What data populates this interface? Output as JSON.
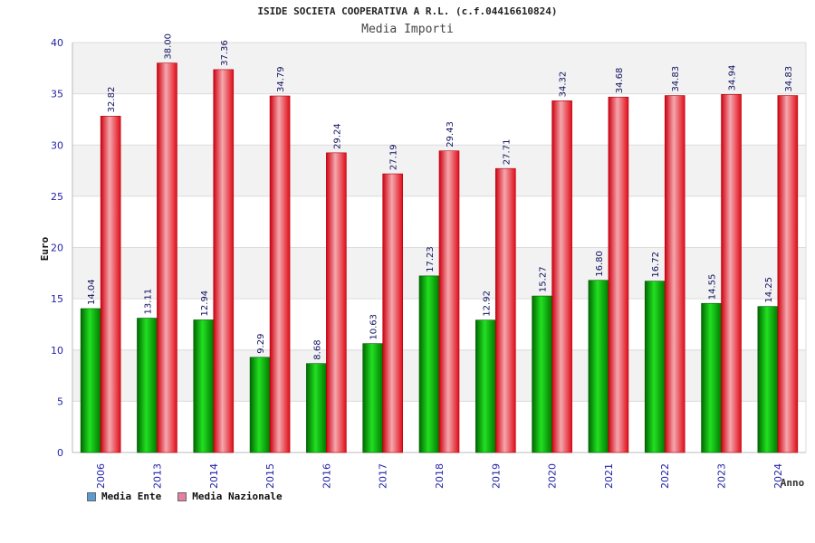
{
  "chart_data": {
    "type": "bar",
    "title": "ISIDE SOCIETA COOPERATIVA A R.L. (c.f.04416610824)",
    "subtitle": "Media Importi",
    "xlabel": "Anno",
    "ylabel": "Euro",
    "ylim": [
      0,
      40
    ],
    "yticks": [
      0,
      5,
      10,
      15,
      20,
      25,
      30,
      35,
      40
    ],
    "grid": true,
    "legend_position": "bottom-left",
    "categories": [
      "2006",
      "2013",
      "2014",
      "2015",
      "2016",
      "2017",
      "2018",
      "2019",
      "2020",
      "2021",
      "2022",
      "2023",
      "2024"
    ],
    "series": [
      {
        "name": "Media Ente",
        "color": "#00b000",
        "values": [
          14.04,
          13.11,
          12.94,
          9.29,
          8.68,
          10.63,
          17.23,
          12.92,
          15.27,
          16.8,
          16.72,
          14.55,
          14.25
        ],
        "labels": [
          "14.04",
          "13.11",
          "12.94",
          "9.29",
          "8.68",
          "10.63",
          "17.23",
          "12.92",
          "15.27",
          "16.80",
          "16.72",
          "14.55",
          "14.25"
        ]
      },
      {
        "name": "Media Nazionale",
        "color": "#e8101c",
        "values": [
          32.82,
          38.0,
          37.36,
          34.79,
          29.24,
          27.19,
          29.43,
          27.71,
          34.32,
          34.68,
          34.83,
          34.94,
          34.83
        ],
        "labels": [
          "32.82",
          "38.00",
          "37.36",
          "34.79",
          "29.24",
          "27.19",
          "29.43",
          "27.71",
          "34.32",
          "34.68",
          "34.83",
          "34.94",
          "34.83"
        ]
      }
    ],
    "legend": [
      {
        "label": "Media Ente",
        "color": "#5b9bd5"
      },
      {
        "label": "Media Nazionale",
        "color": "#e87fa0"
      }
    ]
  }
}
